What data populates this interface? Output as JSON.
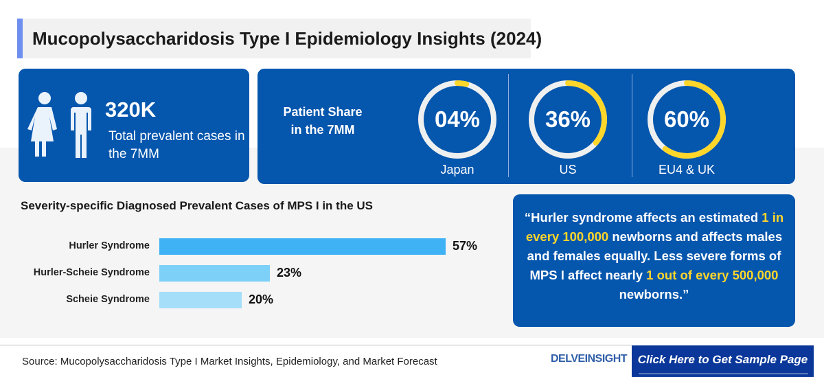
{
  "title": "Mucopolysaccharidosis Type I Epidemiology Insights (2024)",
  "total": {
    "value": "320K",
    "label": "Total prevalent cases in the 7MM"
  },
  "share": {
    "title": "Patient Share in the 7MM",
    "items": [
      {
        "label": "Japan",
        "pct_text": "04%",
        "value": 4
      },
      {
        "label": "US",
        "pct_text": "36%",
        "value": 36
      },
      {
        "label": "EU4 & UK",
        "pct_text": "60%",
        "value": 60
      }
    ]
  },
  "colors": {
    "card": "#0556ad",
    "ring": "#eef0f0",
    "accent": "#ffd62a"
  },
  "chart_data": {
    "type": "bar",
    "orientation": "horizontal",
    "title": "Severity-specific Diagnosed Prevalent Cases of MPS I in the US",
    "categories": [
      "Hurler Syndrome",
      "Hurler-Scheie Syndrome",
      "Scheie Syndrome"
    ],
    "values": [
      57,
      23,
      20
    ],
    "labels": [
      "57%",
      "23%",
      "20%"
    ],
    "colors": [
      "#3fb2f5",
      "#7dd0f7",
      "#a4def9"
    ],
    "grid": false
  },
  "quote": {
    "p1": "“Hurler syndrome affects an estimated ",
    "h1": "1 in every 100,000",
    "p2": " newborns and affects males and females equally. Less severe forms of MPS I affect nearly ",
    "h2": "1 out of every 500,000",
    "p3": " newborns.”"
  },
  "footer": {
    "source": "Source: Mucopolysaccharidosis Type I Market Insights, Epidemiology, and Market Forecast",
    "logo": "DELVEINSIGHT",
    "cta": "Click Here to Get Sample Page"
  }
}
